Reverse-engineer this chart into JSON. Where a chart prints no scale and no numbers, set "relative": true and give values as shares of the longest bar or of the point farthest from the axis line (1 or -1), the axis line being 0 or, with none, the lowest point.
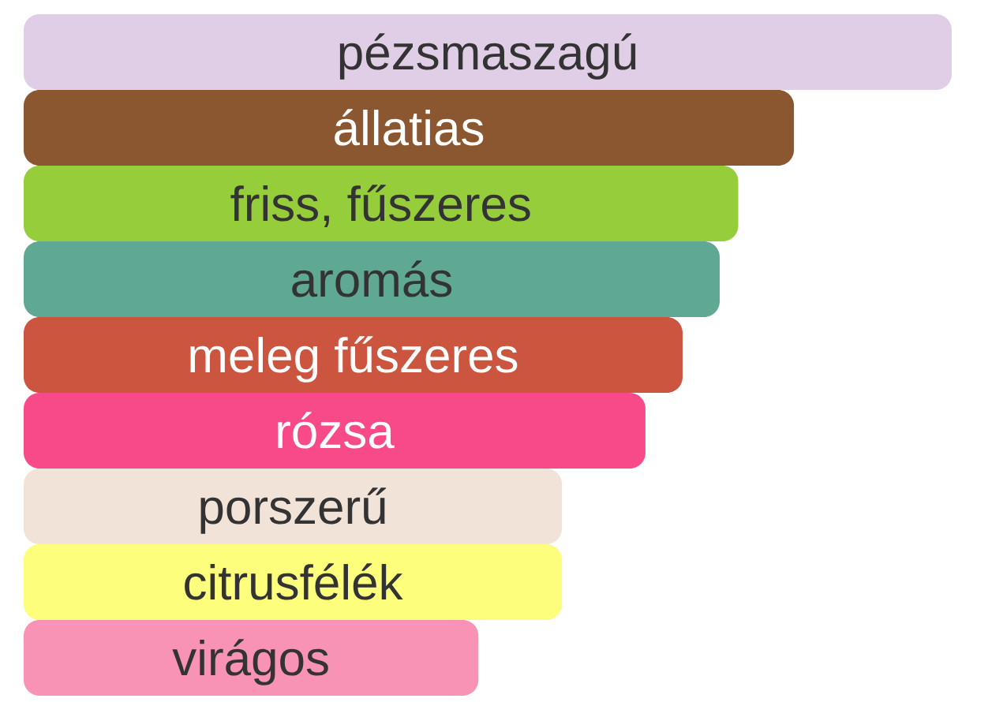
{
  "chart_data": {
    "type": "bar",
    "orientation": "horizontal",
    "relative": true,
    "categories": [
      "pézsmaszagú",
      "állatias",
      "friss, fűszeres",
      "aromás",
      "meleg fűszeres",
      "rózsa",
      "porszerű",
      "citrusfélék",
      "virágos"
    ],
    "values": [
      1,
      0.83,
      0.77,
      0.75,
      0.71,
      0.67,
      0.58,
      0.58,
      0.49
    ],
    "colors": [
      "#e0cee6",
      "#8b5730",
      "#95cd3b",
      "#5fa893",
      "#cb553f",
      "#f84a89",
      "#f1e3d8",
      "#fdfe7b",
      "#f893b5"
    ]
  }
}
